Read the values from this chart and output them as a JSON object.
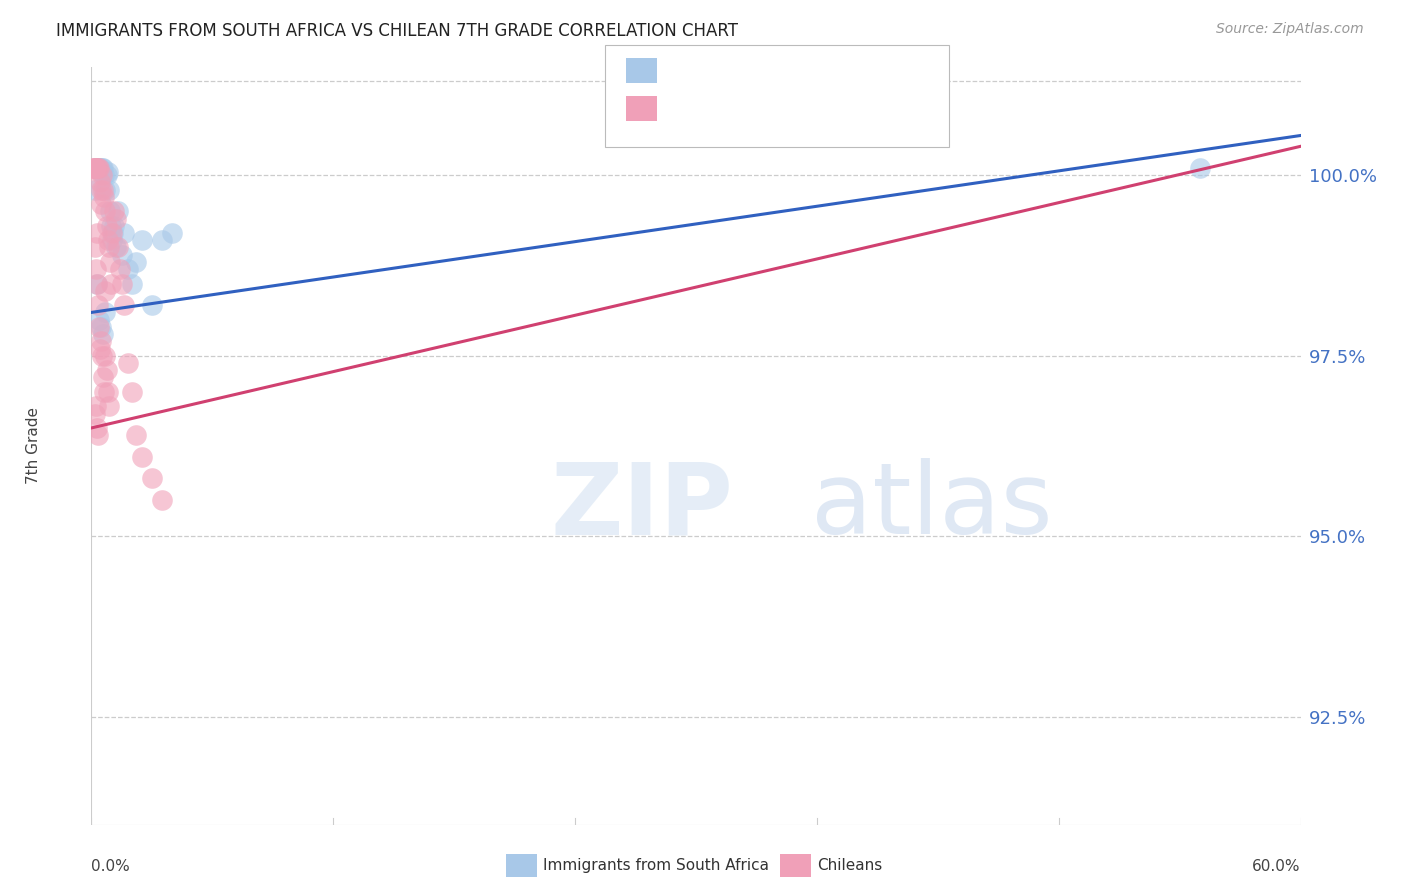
{
  "title": "IMMIGRANTS FROM SOUTH AFRICA VS CHILEAN 7TH GRADE CORRELATION CHART",
  "source": "Source: ZipAtlas.com",
  "ylabel": "7th Grade",
  "ytick_values": [
    92.5,
    95.0,
    97.5,
    100.0
  ],
  "xlim": [
    0.0,
    60.0
  ],
  "ylim": [
    91.0,
    101.5
  ],
  "legend_label_blue": "Immigrants from South Africa",
  "legend_label_pink": "Chileans",
  "blue_scatter_color": "#a8c8e8",
  "pink_scatter_color": "#f0a0b8",
  "blue_line_color": "#3060c0",
  "pink_line_color": "#d04070",
  "blue_line_x0": 0.0,
  "blue_line_y0": 98.1,
  "blue_line_x1": 60.0,
  "blue_line_y1": 100.55,
  "pink_line_x0": 0.0,
  "pink_line_y0": 96.5,
  "pink_line_x1": 60.0,
  "pink_line_y1": 100.4,
  "blue_scatter_x": [
    0.2,
    0.25,
    0.3,
    0.35,
    0.4,
    0.45,
    0.5,
    0.55,
    0.6,
    0.65,
    0.7,
    0.75,
    0.8,
    0.85,
    0.9,
    0.95,
    1.0,
    1.05,
    1.1,
    1.2,
    1.3,
    1.5,
    1.6,
    1.8,
    2.0,
    2.2,
    2.5,
    3.0,
    3.5,
    4.0,
    0.3,
    0.4,
    0.5,
    0.6,
    0.7,
    55.0
  ],
  "blue_scatter_y": [
    99.8,
    100.1,
    100.1,
    100.1,
    100.1,
    100.1,
    100.05,
    100.1,
    100.1,
    100.0,
    99.8,
    100.0,
    100.05,
    99.8,
    99.5,
    99.3,
    99.1,
    99.2,
    99.3,
    99.0,
    99.5,
    98.9,
    99.2,
    98.7,
    98.5,
    98.8,
    99.1,
    98.2,
    99.1,
    99.2,
    98.5,
    98.0,
    97.9,
    97.8,
    98.1,
    100.1
  ],
  "pink_scatter_x": [
    0.1,
    0.15,
    0.2,
    0.25,
    0.3,
    0.35,
    0.4,
    0.45,
    0.5,
    0.55,
    0.6,
    0.65,
    0.7,
    0.75,
    0.8,
    0.85,
    0.9,
    0.95,
    1.0,
    1.1,
    1.2,
    1.3,
    1.4,
    1.5,
    0.2,
    0.25,
    0.3,
    0.35,
    0.4,
    0.45,
    0.5,
    0.55,
    0.6,
    0.65,
    0.7,
    0.75,
    0.8,
    0.85,
    0.2,
    0.25,
    0.3,
    0.35,
    1.6,
    1.8,
    2.0,
    2.2,
    2.5,
    3.0,
    3.5,
    0.15,
    0.3,
    0.5,
    0.7
  ],
  "pink_scatter_y": [
    100.1,
    100.1,
    100.1,
    100.1,
    100.1,
    100.1,
    100.1,
    99.9,
    99.8,
    100.0,
    99.8,
    99.7,
    99.5,
    99.3,
    99.1,
    99.0,
    98.8,
    98.5,
    99.2,
    99.5,
    99.4,
    99.0,
    98.7,
    98.5,
    99.0,
    98.7,
    98.5,
    98.2,
    97.9,
    97.6,
    97.7,
    97.5,
    97.2,
    97.0,
    97.5,
    97.3,
    97.0,
    96.8,
    96.7,
    96.8,
    96.5,
    96.4,
    98.2,
    97.4,
    97.0,
    96.4,
    96.1,
    95.8,
    95.5,
    100.1,
    99.2,
    99.6,
    98.4
  ]
}
